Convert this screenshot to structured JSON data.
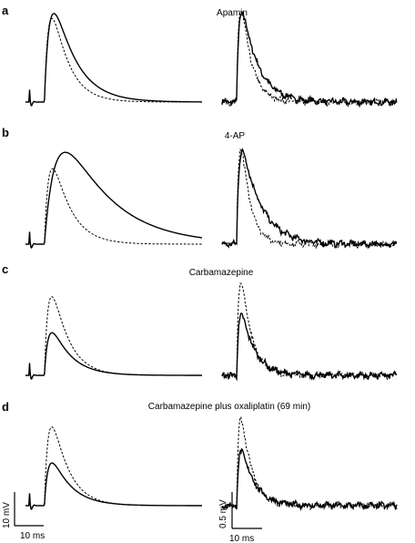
{
  "chart_data": {
    "type": "line",
    "description_series": {
      "solid_style": "solid",
      "dashed_style": "dashed"
    },
    "rows": [
      {
        "label": "a",
        "drug": "Apamin",
        "left": {
          "stim": 10,
          "solid_peak": 27,
          "solid_tau_rise": 2.2,
          "solid_tau_decay": 7.5,
          "dashed_peak": 25.5,
          "dashed_tau_rise": 1.9,
          "dashed_tau_decay": 5.5
        },
        "right": {
          "solid_peak": 0.75,
          "dashed_peak": 0.78,
          "solid_decay": 5.5,
          "dashed_decay": 3.5
        }
      },
      {
        "label": "b",
        "drug": "4-AP",
        "left": {
          "stim": 10,
          "solid_peak": 28,
          "solid_tau_rise": 5.0,
          "solid_tau_decay": 16,
          "dashed_peak": 23,
          "dashed_tau_rise": 2.0,
          "dashed_tau_decay": 6.0
        },
        "right": {
          "solid_peak": 0.78,
          "dashed_peak": 0.8,
          "solid_decay": 6.5,
          "dashed_decay": 3.2
        }
      },
      {
        "label": "c",
        "drug": "Carbamazepine",
        "left": {
          "stim": 10,
          "solid_peak": 13,
          "solid_tau_rise": 1.6,
          "solid_tau_decay": 6.5,
          "dashed_peak": 24,
          "dashed_tau_rise": 1.8,
          "dashed_tau_decay": 5.5
        },
        "right": {
          "solid_peak": 0.5,
          "dashed_peak": 0.78,
          "solid_decay": 4.5,
          "dashed_decay": 3.5
        }
      },
      {
        "label": "d",
        "drug": "Carbamazepine plus oxaliplatin (69 min)",
        "left": {
          "stim": 10,
          "solid_peak": 13,
          "solid_tau_rise": 1.6,
          "solid_tau_decay": 6.5,
          "dashed_peak": 24,
          "dashed_tau_rise": 1.8,
          "dashed_tau_decay": 5.5
        },
        "right": {
          "solid_peak": 0.45,
          "dashed_peak": 0.72,
          "solid_decay": 4.5,
          "dashed_decay": 3.5
        }
      }
    ],
    "scale_bars": {
      "left": {
        "v_label": "10 mV",
        "t_label": "10 ms",
        "v_value": 10,
        "t_value": 10
      },
      "right": {
        "v_label": "0.5 mV",
        "t_label": "10 ms",
        "v_value": 0.5,
        "t_value": 10
      }
    }
  }
}
